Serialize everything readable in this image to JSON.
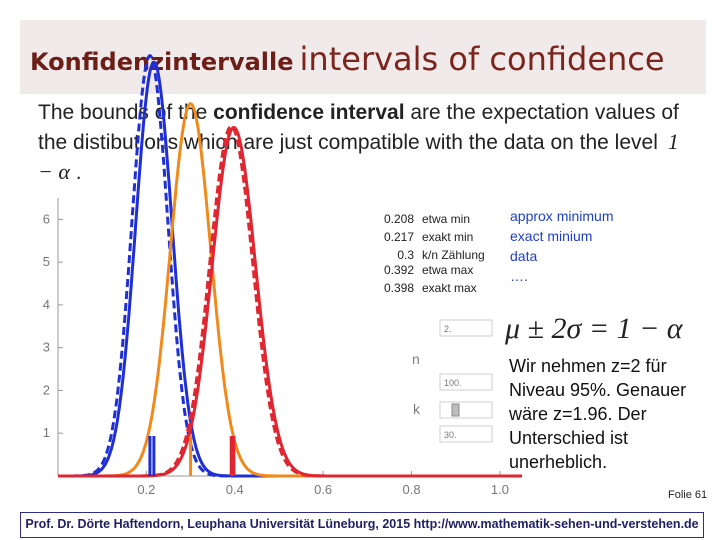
{
  "title": {
    "de": "Konfidenzintervalle",
    "en": "intervals of confidence"
  },
  "intro": {
    "part1": "The bounds of the ",
    "bold": "confidence interval",
    "part2": " are the expectation values of the distibutions which are just compatible with the data on the level",
    "formula": "1 − α",
    "end": " ."
  },
  "annotations": [
    {
      "value": "0.208",
      "label": "etwa min"
    },
    {
      "value": "0.217",
      "label": "exakt min"
    },
    {
      "value": "0.3",
      "label": "k/n Zählung"
    },
    {
      "value": "0.392",
      "label": "etwa max"
    },
    {
      "value": "0.398",
      "label": "exakt max"
    }
  ],
  "legend_right": {
    "line1": "approx minimum",
    "line2": "exact minium",
    "line3": "data",
    "line4": "…."
  },
  "controls": {
    "n_label": "n",
    "k_label": "k",
    "box1_value": "2.",
    "n_value": "100.",
    "k_value": "30."
  },
  "formula": "μ ± 2σ = 1 − α",
  "note": "Wir nehmen z=2 für Niveau 95%. Genauer wäre z=1.96. Der Unterschied ist unerheblich.",
  "folie": "Folie 61",
  "footer": "Prof. Dr. Dörte Haftendorn, Leuphana Universität Lüneburg, 2015 http://www.mathematik-sehen-und-verstehen.de",
  "chart_data": {
    "type": "line",
    "xlim": [
      0,
      1.05
    ],
    "ylim": [
      0,
      6.5
    ],
    "x_ticks": [
      0.2,
      0.4,
      0.6,
      0.8,
      1.0
    ],
    "x_tick_labels": [
      "0.2",
      "0.4",
      "0.6",
      "0.8",
      "1.0"
    ],
    "y_ticks": [
      1,
      2,
      3,
      4,
      5,
      6
    ],
    "y_tick_labels": [
      "1",
      "2",
      "3",
      "4",
      "5",
      "6"
    ],
    "series": [
      {
        "color": "#1f2fd6",
        "style": "dashed",
        "mean": 0.208,
        "n": 100
      },
      {
        "color": "#1f2fd6",
        "style": "solid",
        "mean": 0.217,
        "n": 100
      },
      {
        "color": "#f08a1c",
        "style": "solid",
        "mean": 0.3,
        "n": 100
      },
      {
        "color": "#e02630",
        "style": "dashed",
        "mean": 0.392,
        "n": 100
      },
      {
        "color": "#e02630",
        "style": "solid",
        "mean": 0.398,
        "n": 100
      }
    ],
    "markers": [
      {
        "x": 0.208,
        "color": "#1f2fd6"
      },
      {
        "x": 0.217,
        "color": "#1f2fd6"
      },
      {
        "x": 0.3,
        "color": "#f08a1c"
      },
      {
        "x": 0.392,
        "color": "#e02630"
      },
      {
        "x": 0.398,
        "color": "#e02630"
      }
    ]
  }
}
